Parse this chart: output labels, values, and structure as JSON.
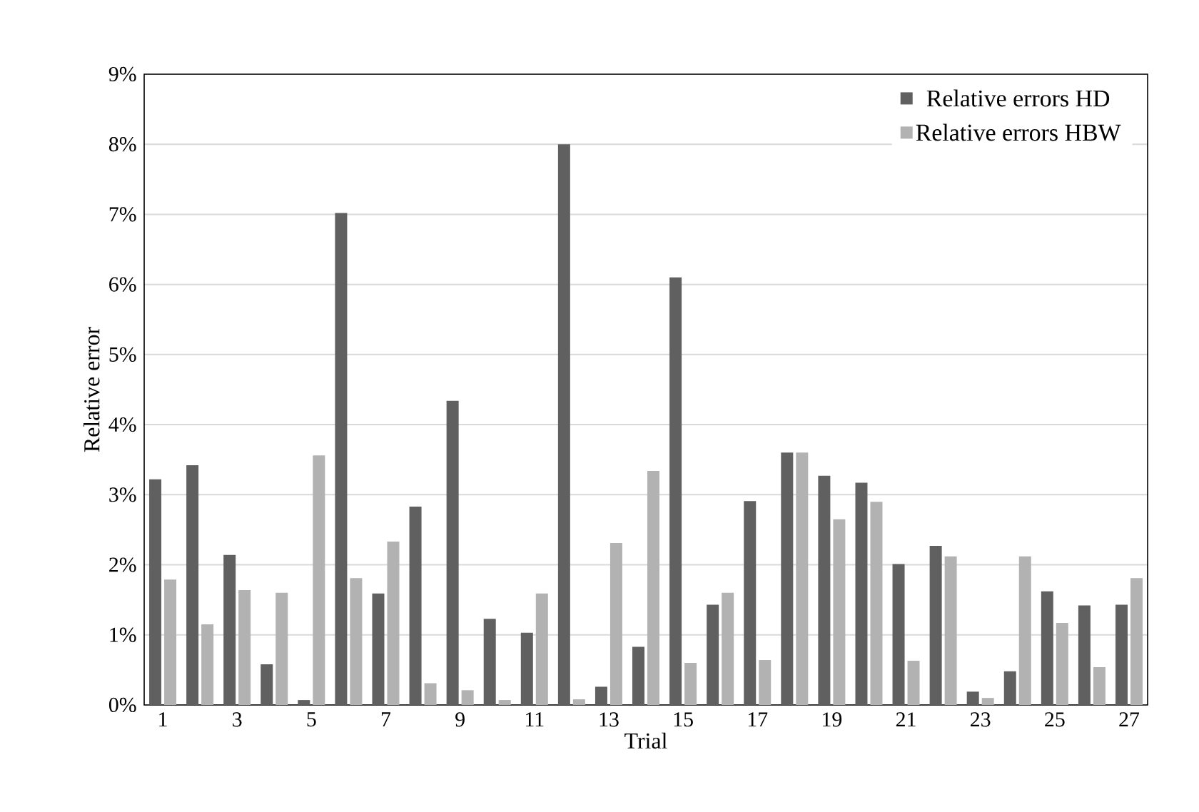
{
  "chart_data": {
    "type": "bar",
    "xlabel": "Trial",
    "ylabel": "Relative error",
    "categories": [
      "1",
      null,
      "3",
      null,
      "5",
      null,
      "7",
      null,
      "9",
      null,
      "11",
      null,
      "13",
      null,
      "15",
      null,
      "17",
      null,
      "19",
      null,
      "21",
      null,
      "23",
      null,
      "25",
      null,
      "27"
    ],
    "series": [
      {
        "name": "Relative errors HD",
        "color": "#606060",
        "values": [
          3.22,
          3.42,
          2.14,
          0.58,
          0.07,
          7.02,
          1.59,
          2.83,
          4.34,
          1.23,
          1.03,
          8.0,
          0.26,
          0.83,
          6.1,
          1.43,
          2.91,
          3.6,
          3.27,
          3.17,
          2.01,
          2.27,
          0.19,
          0.48,
          1.62,
          1.42,
          1.43
        ]
      },
      {
        "name": "Relative errors HBW",
        "color": "#b2b2b2",
        "values": [
          1.79,
          1.15,
          1.64,
          1.6,
          3.56,
          1.81,
          2.33,
          0.31,
          0.21,
          0.07,
          1.59,
          0.08,
          2.31,
          3.34,
          0.6,
          1.6,
          0.64,
          3.6,
          2.65,
          2.9,
          0.63,
          2.12,
          0.1,
          2.12,
          1.17,
          0.54,
          1.81
        ]
      }
    ],
    "ylim": [
      0,
      9
    ],
    "yticks": [
      {
        "value": 0,
        "label": "0%"
      },
      {
        "value": 1,
        "label": "1%"
      },
      {
        "value": 2,
        "label": "2%"
      },
      {
        "value": 3,
        "label": "3%"
      },
      {
        "value": 4,
        "label": "4%"
      },
      {
        "value": 5,
        "label": "5%"
      },
      {
        "value": 6,
        "label": "6%"
      },
      {
        "value": 7,
        "label": "7%"
      },
      {
        "value": 8,
        "label": "8%"
      },
      {
        "value": 9,
        "label": "9%"
      }
    ],
    "grid": "y",
    "legend": "top right"
  }
}
